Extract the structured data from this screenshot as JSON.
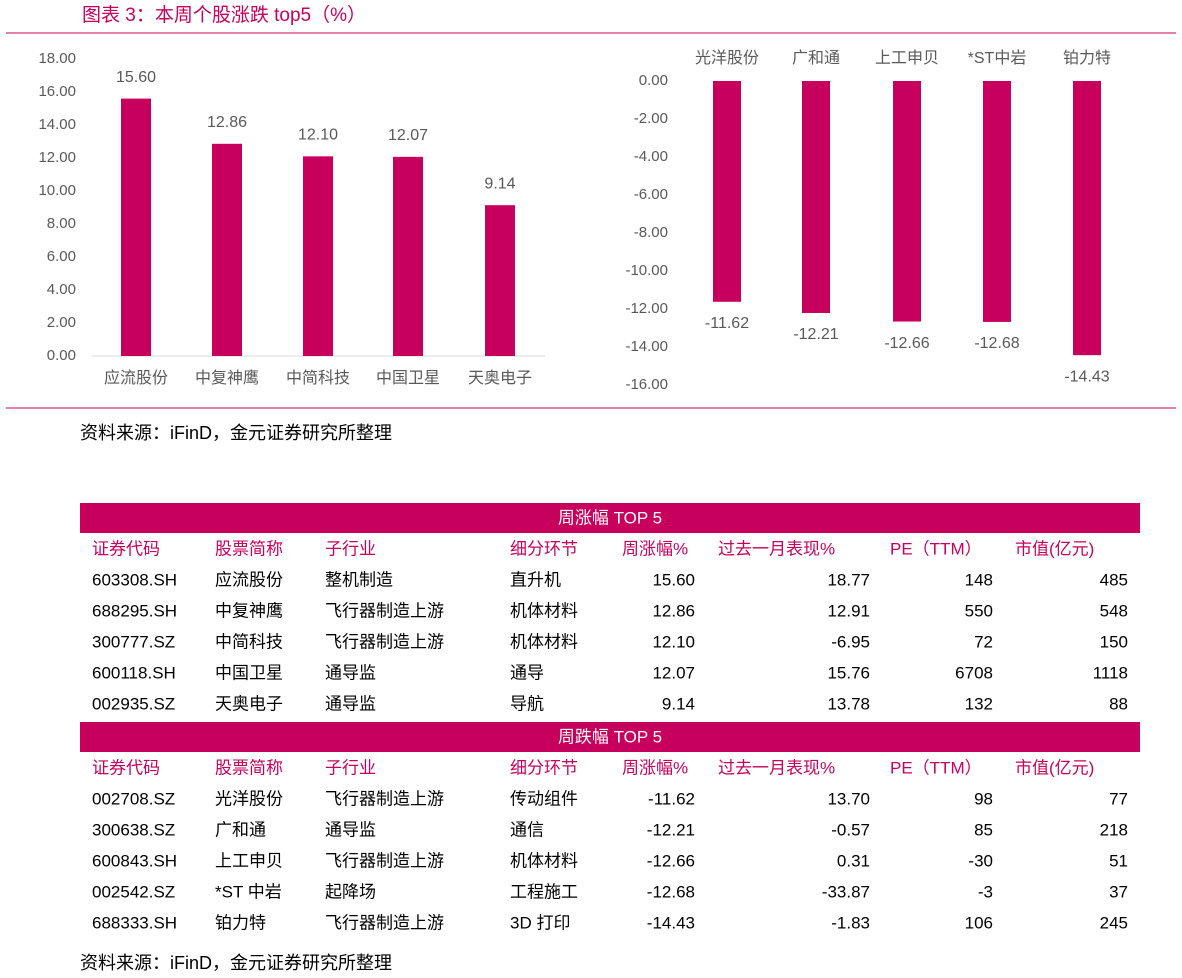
{
  "title": "图表 3：本周个股涨跌 top5（%）",
  "chart_data": [
    {
      "type": "bar",
      "color": "#c8005d",
      "categories": [
        "应流股份",
        "中复神鹰",
        "中简科技",
        "中国卫星",
        "天奥电子"
      ],
      "values": [
        15.6,
        12.86,
        12.1,
        12.07,
        9.14
      ],
      "value_labels": [
        "15.60",
        "12.86",
        "12.10",
        "12.07",
        "9.14"
      ],
      "ylim": [
        0,
        18
      ],
      "yticks": [
        {
          "value": 0,
          "label": "0.00"
        },
        {
          "value": 2,
          "label": "2.00"
        },
        {
          "value": 4,
          "label": "4.00"
        },
        {
          "value": 6,
          "label": "6.00"
        },
        {
          "value": 8,
          "label": "8.00"
        },
        {
          "value": 10,
          "label": "10.00"
        },
        {
          "value": 12,
          "label": "12.00"
        },
        {
          "value": 14,
          "label": "14.00"
        },
        {
          "value": 16,
          "label": "16.00"
        },
        {
          "value": 18,
          "label": "18.00"
        }
      ]
    },
    {
      "type": "bar",
      "color": "#c8005d",
      "categories": [
        "光洋股份",
        "广和通",
        "上工申贝",
        "*ST中岩",
        "铂力特"
      ],
      "values": [
        -11.62,
        -12.21,
        -12.66,
        -12.68,
        -14.43
      ],
      "value_labels": [
        "-11.62",
        "-12.21",
        "-12.66",
        "-12.68",
        "-14.43"
      ],
      "ylim": [
        -16,
        0
      ],
      "yticks": [
        {
          "value": 0,
          "label": "0.00"
        },
        {
          "value": -2,
          "label": "-2.00"
        },
        {
          "value": -4,
          "label": "-4.00"
        },
        {
          "value": -6,
          "label": "-6.00"
        },
        {
          "value": -8,
          "label": "-8.00"
        },
        {
          "value": -10,
          "label": "-10.00"
        },
        {
          "value": -12,
          "label": "-12.00"
        },
        {
          "value": -14,
          "label": "-14.00"
        },
        {
          "value": -16,
          "label": "-16.00"
        }
      ]
    }
  ],
  "source_top": "资料来源：iFinD，金元证券研究所整理",
  "table": {
    "sections": [
      {
        "title": "周涨幅 TOP 5",
        "headers": [
          "证券代码",
          "股票简称",
          "子行业",
          "细分环节",
          "周涨幅%",
          "过去一月表现%",
          "PE（TTM）",
          "市值(亿元)"
        ],
        "rows": [
          [
            "603308.SH",
            "应流股份",
            "整机制造",
            "直升机",
            "15.60",
            "18.77",
            "148",
            "485"
          ],
          [
            "688295.SH",
            "中复神鹰",
            "飞行器制造上游",
            "机体材料",
            "12.86",
            "12.91",
            "550",
            "548"
          ],
          [
            "300777.SZ",
            "中简科技",
            "飞行器制造上游",
            "机体材料",
            "12.10",
            "-6.95",
            "72",
            "150"
          ],
          [
            "600118.SH",
            "中国卫星",
            "通导监",
            "通导",
            "12.07",
            "15.76",
            "6708",
            "1118"
          ],
          [
            "002935.SZ",
            "天奥电子",
            "通导监",
            "导航",
            "9.14",
            "13.78",
            "132",
            "88"
          ]
        ]
      },
      {
        "title": "周跌幅 TOP 5",
        "headers": [
          "证券代码",
          "股票简称",
          "子行业",
          "细分环节",
          "周涨幅%",
          "过去一月表现%",
          "PE（TTM）",
          "市值(亿元)"
        ],
        "rows": [
          [
            "002708.SZ",
            "光洋股份",
            "飞行器制造上游",
            "传动组件",
            "-11.62",
            "13.70",
            "98",
            "77"
          ],
          [
            "300638.SZ",
            "广和通",
            "通导监",
            "通信",
            "-12.21",
            "-0.57",
            "85",
            "218"
          ],
          [
            "600843.SH",
            "上工申贝",
            "飞行器制造上游",
            "机体材料",
            "-12.66",
            "0.31",
            "-30",
            "51"
          ],
          [
            "002542.SZ",
            "*ST 中岩",
            "起降场",
            "工程施工",
            "-12.68",
            "-33.87",
            "-3",
            "37"
          ],
          [
            "688333.SH",
            "铂力特",
            "飞行器制造上游",
            "3D 打印",
            "-14.43",
            "-1.83",
            "106",
            "245"
          ]
        ]
      }
    ]
  },
  "source_bottom": "资料来源：iFinD，金元证券研究所整理"
}
